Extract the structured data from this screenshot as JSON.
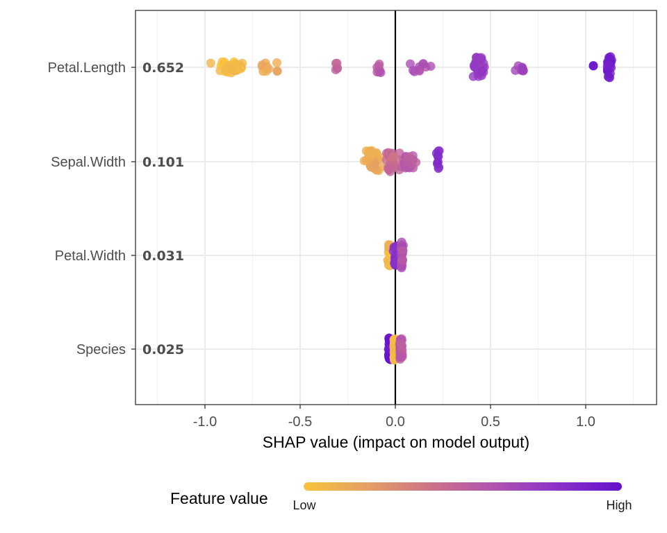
{
  "chart_data": {
    "type": "scatter",
    "subtype": "shap-beeswarm",
    "xlabel": "SHAP value (impact on model output)",
    "ylabel": "",
    "xlim": [
      -1.38,
      1.38
    ],
    "x_ticks": [
      -1.0,
      -0.5,
      0.0,
      0.5,
      1.0
    ],
    "x_tick_labels": [
      "-1.0",
      "-0.5",
      "0.0",
      "0.5",
      "1.0"
    ],
    "grid": true,
    "zero_line": true,
    "features": [
      {
        "name": "Petal.Length",
        "importance": "0.652",
        "clusters": [
          {
            "x": -0.87,
            "spread": 0.13,
            "n": 42,
            "value": 0.05,
            "jitter": 0.5
          },
          {
            "x": -0.69,
            "spread": 0.05,
            "n": 8,
            "value": 0.12,
            "jitter": 0.4
          },
          {
            "x": -0.62,
            "spread": 0.01,
            "n": 3,
            "value": 0.15,
            "jitter": 0.5
          },
          {
            "x": -0.31,
            "spread": 0.02,
            "n": 5,
            "value": 0.5,
            "jitter": 0.4
          },
          {
            "x": -0.09,
            "spread": 0.02,
            "n": 7,
            "value": 0.55,
            "jitter": 0.7
          },
          {
            "x": 0.13,
            "spread": 0.08,
            "n": 10,
            "value": 0.65,
            "jitter": 0.4
          },
          {
            "x": 0.44,
            "spread": 0.06,
            "n": 24,
            "value": 0.75,
            "jitter": 0.9
          },
          {
            "x": 0.67,
            "spread": 0.07,
            "n": 8,
            "value": 0.7,
            "jitter": 0.4
          },
          {
            "x": 1.12,
            "spread": 0.02,
            "n": 26,
            "value": 0.92,
            "jitter": 1.0
          },
          {
            "x": 1.04,
            "spread": 0.0,
            "n": 2,
            "value": 0.97,
            "jitter": 0.3
          }
        ]
      },
      {
        "name": "Sepal.Width",
        "importance": "0.101",
        "clusters": [
          {
            "x": -0.12,
            "spread": 0.06,
            "n": 40,
            "value": 0.15,
            "jitter": 1.0
          },
          {
            "x": -0.02,
            "spread": 0.06,
            "n": 30,
            "value": 0.45,
            "jitter": 0.9
          },
          {
            "x": 0.07,
            "spread": 0.05,
            "n": 25,
            "value": 0.55,
            "jitter": 0.7
          },
          {
            "x": 0.225,
            "spread": 0.01,
            "n": 10,
            "value": 0.85,
            "jitter": 1.0
          }
        ]
      },
      {
        "name": "Petal.Width",
        "importance": "0.031",
        "clusters": [
          {
            "x": -0.03,
            "spread": 0.012,
            "n": 35,
            "value": 0.08,
            "jitter": 1.0
          },
          {
            "x": 0.0,
            "spread": 0.012,
            "n": 20,
            "value": 0.82,
            "jitter": 0.9
          },
          {
            "x": 0.035,
            "spread": 0.012,
            "n": 30,
            "value": 0.6,
            "jitter": 1.2
          }
        ]
      },
      {
        "name": "Species",
        "importance": "0.025",
        "clusters": [
          {
            "x": -0.03,
            "spread": 0.01,
            "n": 45,
            "value": 0.95,
            "jitter": 1.0
          },
          {
            "x": -0.005,
            "spread": 0.005,
            "n": 25,
            "value": 0.03,
            "jitter": 1.0
          },
          {
            "x": 0.03,
            "spread": 0.01,
            "n": 40,
            "value": 0.55,
            "jitter": 1.0
          }
        ]
      }
    ],
    "legend": {
      "title": "Feature value",
      "low_label": "Low",
      "high_label": "High",
      "placement": "bottom",
      "colors": [
        "#f9c23c",
        "#e6a064",
        "#cc7288",
        "#b152b0",
        "#8a32c8",
        "#6410cc"
      ]
    }
  }
}
